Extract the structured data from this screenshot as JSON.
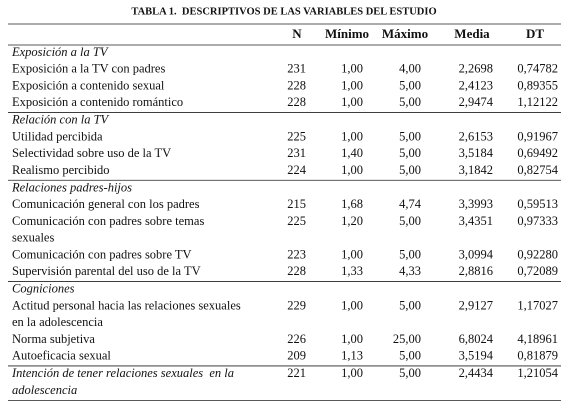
{
  "title": "TABLA 1.  DESCRIPTIVOS DE LAS VARIABLES DEL ESTUDIO",
  "header": [
    "N",
    "Mínimo",
    "Máximo",
    "Media",
    "DT"
  ],
  "sections": [
    {
      "title": "Exposición a la TV",
      "rows": [
        {
          "label": [
            "Exposición a la TV con padres"
          ],
          "cells": [
            "231",
            "1,00",
            "4,00",
            "2,2698",
            "0,74782"
          ]
        },
        {
          "label": [
            "Exposición a contenido sexual"
          ],
          "cells": [
            "228",
            "1,00",
            "5,00",
            "2,4123",
            "0,89355"
          ]
        },
        {
          "label": [
            "Exposición a contenido romántico"
          ],
          "cells": [
            "228",
            "1,00",
            "5,00",
            "2,9474",
            "1,12122"
          ]
        }
      ]
    },
    {
      "title": "Relación con la TV",
      "rows": [
        {
          "label": [
            "Utilidad percibida"
          ],
          "cells": [
            "225",
            "1,00",
            "5,00",
            "2,6153",
            "0,91967"
          ]
        },
        {
          "label": [
            "Selectividad sobre uso de la TV"
          ],
          "cells": [
            "231",
            "1,40",
            "5,00",
            "3,5184",
            "0,69492"
          ]
        },
        {
          "label": [
            "Realismo percibido"
          ],
          "cells": [
            "224",
            "1,00",
            "5,00",
            "3,1842",
            "0,82754"
          ]
        }
      ]
    },
    {
      "title": "Relaciones padres-hijos",
      "rows": [
        {
          "label": [
            "Comunicación general con los padres"
          ],
          "cells": [
            "215",
            "1,68",
            "4,74",
            "3,3993",
            "0,59513"
          ]
        },
        {
          "label": [
            "Comunicación con padres sobre temas",
            "sexuales"
          ],
          "cells": [
            "225",
            "1,20",
            "5,00",
            "3,4351",
            "0,97333"
          ]
        },
        {
          "label": [
            "Comunicación con padres sobre TV"
          ],
          "cells": [
            "223",
            "1,00",
            "5,00",
            "3,0994",
            "0,92280"
          ]
        },
        {
          "label": [
            "Supervisión parental del uso de la TV"
          ],
          "cells": [
            "228",
            "1,33",
            "4,33",
            "2,8816",
            "0,72089"
          ]
        }
      ]
    },
    {
      "title": "Cogniciones",
      "rows": [
        {
          "label": [
            "Actitud personal hacia las relaciones sexuales",
            "en la adolescencia"
          ],
          "cells": [
            "229",
            "1,00",
            "5,00",
            "2,9127",
            "1,17027"
          ]
        },
        {
          "label": [
            "Norma subjetiva"
          ],
          "cells": [
            "226",
            "1,00",
            "25,00",
            "6,8024",
            "4,18961"
          ]
        },
        {
          "label": [
            "Autoeficacia sexual"
          ],
          "cells": [
            "209",
            "1,13",
            "5,00",
            "3,5194",
            "0,81879"
          ]
        }
      ]
    }
  ],
  "outcome": {
    "label": [
      "Intención de tener relaciones sexuales  en la",
      "adolescencia"
    ],
    "cells": [
      "221",
      "1,00",
      "5,00",
      "2,4434",
      "1,21054"
    ]
  }
}
